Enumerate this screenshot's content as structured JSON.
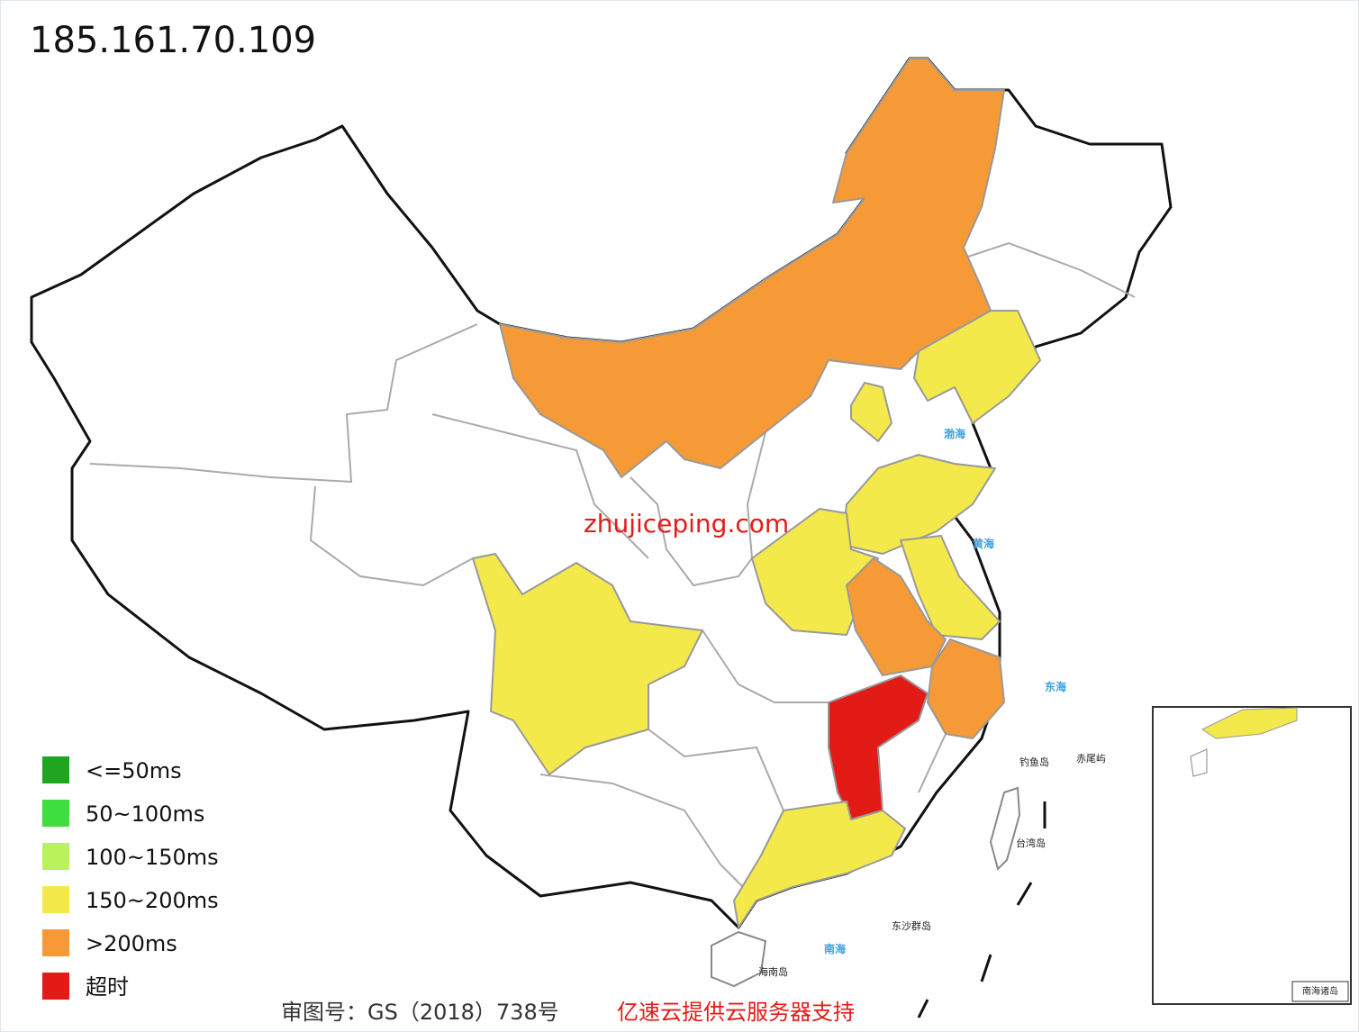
{
  "title": "185.161.70.109",
  "legend": [
    {
      "label": "<=50ms",
      "color": "#1fa51f"
    },
    {
      "label": "50~100ms",
      "color": "#3dde3d"
    },
    {
      "label": "100~150ms",
      "color": "#b9f25a"
    },
    {
      "label": "150~200ms",
      "color": "#f4e94a"
    },
    {
      "label": ">200ms",
      "color": "#f59a36"
    },
    {
      "label": "超时",
      "color": "#e31b17"
    }
  ],
  "watermark": "zhujiceping.com",
  "map_labels": {
    "bohai": "渤海",
    "huanghai": "黄海",
    "donghai": "东海",
    "nanhai": "南海",
    "taiwan": "台湾岛",
    "hainan": "海南岛",
    "diaoyu": "钓鱼岛",
    "chiwei": "赤尾屿",
    "dongsha": "东沙群岛",
    "inset": "南海诸岛"
  },
  "footer": {
    "approval": "审图号：GS（2018）738号",
    "sponsor": "亿速云提供云服务器支持"
  }
}
